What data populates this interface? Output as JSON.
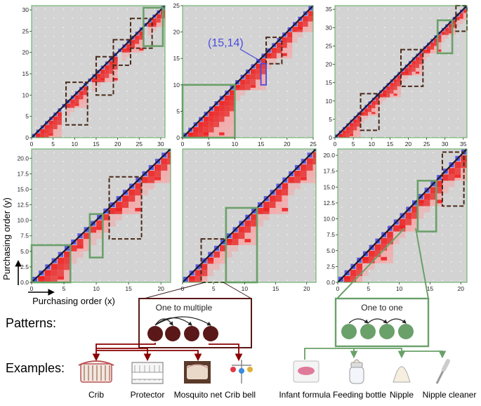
{
  "figure": {
    "y_axis_title": "Purchasing order (y)",
    "x_axis_title": "Purchasing order (x)",
    "patterns_label": "Patterns:",
    "examples_label": "Examples:",
    "pattern_one_to_multiple": "One to multiple",
    "pattern_one_to_one": "One to one",
    "annotation_point": "(15,14)",
    "examples_left": [
      "Crib",
      "Protector",
      "Mosquito net",
      "Crib bell"
    ],
    "examples_right": [
      "Infant formula",
      "Feeding bottle",
      "Nipple",
      "Nipple cleaner"
    ],
    "colors": {
      "background": "#d3d3d3",
      "diagonal": "#1a1a33",
      "diag_marker": "#5a5ae0",
      "heat_strong": "#ee2222",
      "heat_light": "#ff9c9c",
      "dashed_box": "#4a2a1a",
      "green_box": "#6aa06a",
      "blue_box": "#4a4ae0",
      "pattern_brown": "#5a1818",
      "pattern_green": "#6aa06a",
      "arrow_dark": "#8b0000",
      "axis_spine": "#5aaa5a"
    }
  },
  "chart_data": [
    {
      "type": "heatmap",
      "panel": "top-left",
      "size": 31,
      "xlim": [
        0,
        31
      ],
      "ylim": [
        0,
        31
      ],
      "xticks": [
        0,
        5,
        10,
        15,
        20,
        25,
        30
      ],
      "yticks": [
        0,
        5,
        10,
        15,
        20,
        25,
        30
      ],
      "clusters": [
        [
          0,
          7
        ],
        [
          8,
          13
        ],
        [
          14,
          20
        ],
        [
          21,
          26
        ],
        [
          27,
          31
        ]
      ],
      "dashed_boxes": [
        [
          8,
          3,
          13,
          13
        ],
        [
          15,
          10,
          19,
          19
        ],
        [
          19,
          17,
          23,
          23
        ],
        [
          23,
          21,
          28,
          28
        ]
      ],
      "green_boxes": [
        [
          26,
          21.5,
          30.5,
          30.5
        ]
      ],
      "blue_boxes": []
    },
    {
      "type": "heatmap",
      "panel": "top-middle",
      "size": 25,
      "xlim": [
        0,
        25
      ],
      "ylim": [
        0,
        25
      ],
      "xticks": [
        0,
        5,
        10,
        15,
        20,
        25
      ],
      "yticks": [
        0,
        5,
        10,
        15,
        20,
        25
      ],
      "clusters": [
        [
          0,
          10
        ],
        [
          10,
          16
        ],
        [
          16,
          21
        ],
        [
          21,
          25
        ]
      ],
      "dashed_boxes": [
        [
          16,
          14,
          19,
          19
        ]
      ],
      "green_boxes": [
        [
          0,
          0,
          10,
          10
        ]
      ],
      "blue_boxes": [
        [
          15,
          10,
          16,
          14
        ]
      ]
    },
    {
      "type": "heatmap",
      "panel": "top-right",
      "size": 36,
      "xlim": [
        0,
        36
      ],
      "ylim": [
        0,
        36
      ],
      "xticks": [
        0,
        5,
        10,
        15,
        20,
        25,
        30,
        35
      ],
      "yticks": [
        0,
        5,
        10,
        15,
        20,
        25,
        30,
        35
      ],
      "clusters": [
        [
          0,
          7
        ],
        [
          7,
          12
        ],
        [
          12,
          18
        ],
        [
          18,
          24
        ],
        [
          24,
          29
        ],
        [
          29,
          33
        ],
        [
          33,
          36
        ]
      ],
      "dashed_boxes": [
        [
          7,
          2,
          12,
          12
        ],
        [
          18,
          14,
          24,
          24
        ],
        [
          33,
          29,
          36,
          36
        ]
      ],
      "green_boxes": [
        [
          28,
          23,
          32,
          32
        ]
      ],
      "blue_boxes": []
    },
    {
      "type": "heatmap",
      "panel": "bottom-left",
      "size": 21.5,
      "xlim": [
        0,
        21.5
      ],
      "ylim": [
        0,
        21.5
      ],
      "xticks": [
        0,
        5,
        10,
        15,
        20
      ],
      "yticks": [
        0.0,
        2.5,
        5.0,
        7.5,
        10.0,
        12.5,
        15.0,
        17.5,
        20.0
      ],
      "clusters": [
        [
          0,
          6
        ],
        [
          6,
          9
        ],
        [
          9,
          12
        ],
        [
          12,
          17
        ],
        [
          17,
          21.5
        ]
      ],
      "dashed_boxes": [
        [
          12,
          7,
          17,
          17
        ]
      ],
      "green_boxes": [
        [
          0,
          0,
          6,
          6
        ],
        [
          9,
          4,
          11,
          11
        ]
      ],
      "blue_boxes": []
    },
    {
      "type": "heatmap",
      "panel": "bottom-middle",
      "size": 21.5,
      "xlim": [
        0,
        21.5
      ],
      "ylim": [
        0,
        21.5
      ],
      "xticks": [
        0,
        5,
        10,
        15,
        20
      ],
      "yticks": [],
      "clusters": [
        [
          0,
          4
        ],
        [
          4,
          7
        ],
        [
          7,
          12
        ],
        [
          12,
          17
        ],
        [
          17,
          21.5
        ]
      ],
      "dashed_boxes": [
        [
          3,
          0,
          7,
          7
        ]
      ],
      "green_boxes": [
        [
          7,
          0,
          12,
          12
        ]
      ],
      "blue_boxes": []
    },
    {
      "type": "heatmap",
      "panel": "bottom-right",
      "size": 21,
      "xlim": [
        0,
        21
      ],
      "ylim": [
        0,
        21
      ],
      "xticks": [
        0,
        5,
        10,
        15,
        20
      ],
      "yticks": [
        0.0,
        2.5,
        5.0,
        7.5,
        10.0,
        12.5,
        15.0,
        17.5,
        20.0
      ],
      "clusters": [
        [
          0,
          4
        ],
        [
          4,
          9
        ],
        [
          9,
          13
        ],
        [
          13,
          17
        ],
        [
          17,
          21
        ]
      ],
      "dashed_boxes": [
        [
          17,
          12,
          20.5,
          20.5
        ]
      ],
      "green_boxes": [
        [
          13,
          8,
          16,
          16
        ]
      ],
      "blue_boxes": []
    }
  ]
}
